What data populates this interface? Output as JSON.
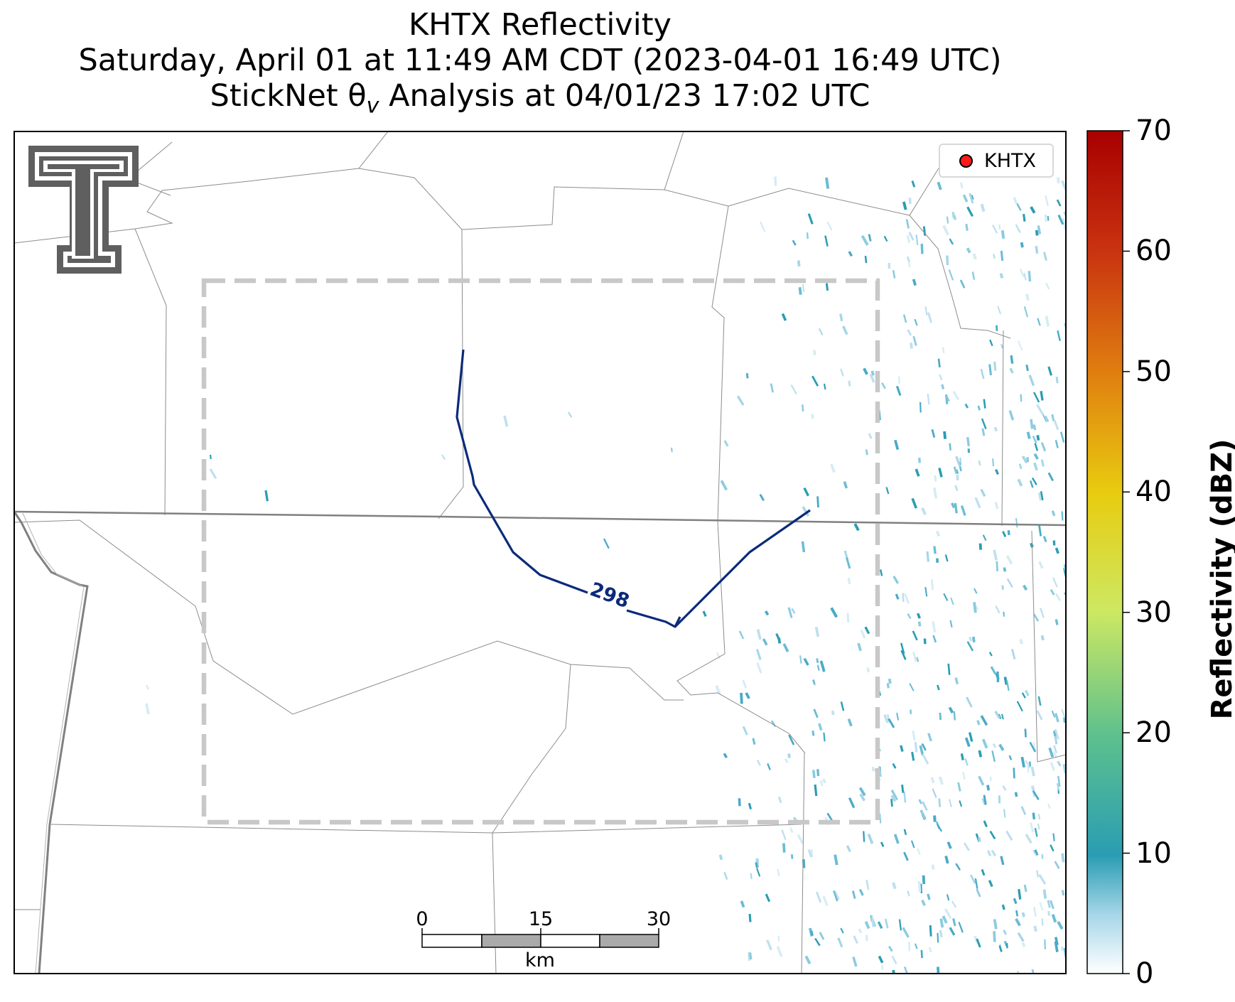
{
  "title": {
    "line1": "KHTX Reflectivity",
    "line2": "Saturday, April 01 at 11:49 AM CDT (2023-04-01 16:49 UTC)",
    "line3_prefix": "StickNet θ",
    "line3_subscript": "v",
    "line3_suffix": " Analysis at 04/01/23 17:02 UTC"
  },
  "legend": {
    "label": "KHTX",
    "marker_color": "#ff1a1a"
  },
  "logo": {
    "name": "Texas Tech Double T",
    "text": "T"
  },
  "contour": {
    "label": "298",
    "color": "#0b2a7a"
  },
  "scalebar": {
    "ticks": [
      "0",
      "15",
      "30"
    ],
    "unit": "km"
  },
  "colorbar": {
    "title": "Reflectivity (dBZ)",
    "ticks": [
      "0",
      "10",
      "20",
      "30",
      "40",
      "50",
      "60",
      "70"
    ],
    "range": [
      0,
      70
    ],
    "colors": [
      "#ffffff",
      "#a6d6e8",
      "#2a9db3",
      "#5cc08e",
      "#cde862",
      "#e8cc10",
      "#e08010",
      "#c83210",
      "#a80000"
    ]
  },
  "colors": {
    "analysis_box": "#c8c8c8",
    "state_border": "#808080",
    "county_border": "#8c8c8c"
  }
}
